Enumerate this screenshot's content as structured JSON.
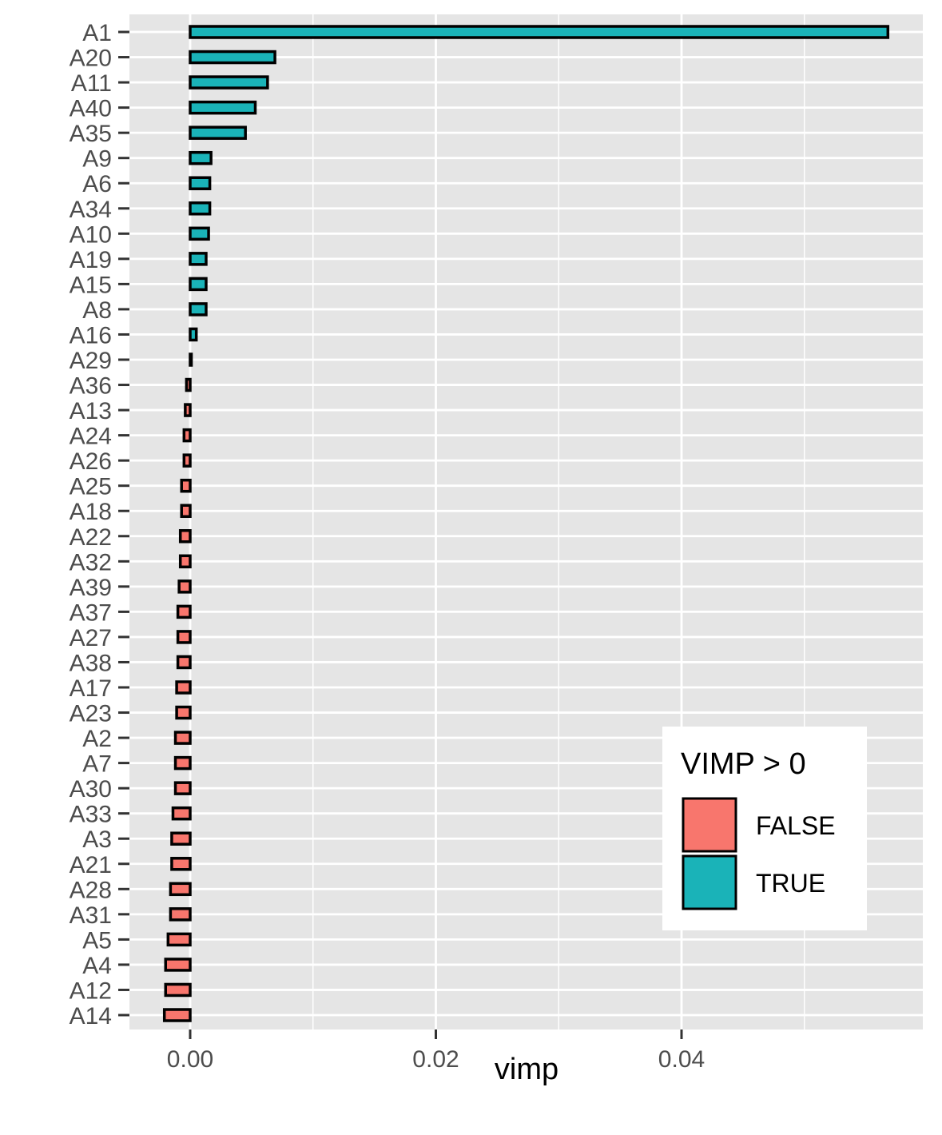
{
  "chart_data": {
    "type": "bar",
    "orientation": "horizontal",
    "title": "",
    "xlabel": "vimp",
    "ylabel": "",
    "xlim": [
      -0.005,
      0.0597
    ],
    "x_ticks": [
      0.0,
      0.02,
      0.04
    ],
    "x_tick_labels": [
      "0.00",
      "0.02",
      "0.04"
    ],
    "x_minor_gridlines": [
      0.01,
      0.03,
      0.05
    ],
    "grid": true,
    "legend_position": "bottom-right",
    "legend": {
      "title": "VIMP > 0",
      "entries": [
        {
          "label": "FALSE",
          "color": "#F8766D"
        },
        {
          "label": "TRUE",
          "color": "#00BFC4"
        }
      ]
    },
    "colors": {
      "panel_background": "#E5E5E5",
      "grid": "#FFFFFF",
      "bar_outline": "#000000",
      "false_fill": "#F8766D",
      "true_fill": "#1AB3B8"
    },
    "categories": [
      "A1",
      "A20",
      "A11",
      "A40",
      "A35",
      "A9",
      "A6",
      "A34",
      "A10",
      "A19",
      "A15",
      "A8",
      "A16",
      "A29",
      "A36",
      "A13",
      "A24",
      "A26",
      "A25",
      "A18",
      "A22",
      "A32",
      "A39",
      "A37",
      "A27",
      "A38",
      "A17",
      "A23",
      "A2",
      "A7",
      "A30",
      "A33",
      "A3",
      "A21",
      "A28",
      "A31",
      "A5",
      "A4",
      "A12",
      "A14"
    ],
    "values": [
      0.0568,
      0.0069,
      0.0063,
      0.0053,
      0.0045,
      0.0017,
      0.0016,
      0.0016,
      0.0015,
      0.0013,
      0.0013,
      0.0013,
      0.0005,
      0.0001,
      -0.0003,
      -0.0004,
      -0.0005,
      -0.0005,
      -0.0007,
      -0.0007,
      -0.0008,
      -0.0008,
      -0.0009,
      -0.001,
      -0.001,
      -0.001,
      -0.0011,
      -0.0011,
      -0.0012,
      -0.0012,
      -0.0012,
      -0.0014,
      -0.0015,
      -0.0015,
      -0.0016,
      -0.0016,
      -0.0018,
      -0.002,
      -0.002,
      -0.0021
    ]
  }
}
